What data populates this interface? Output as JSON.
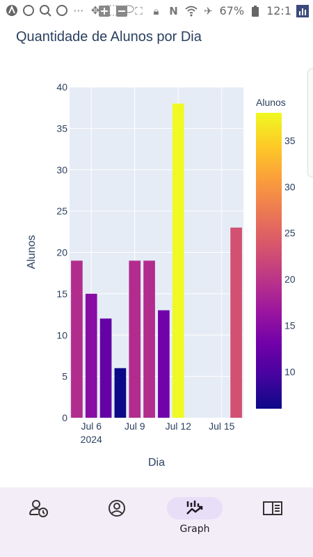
{
  "status_bar": {
    "battery": "67%",
    "time": "12:1",
    "icons": [
      "a-icon",
      "whatsapp-icon",
      "search-icon",
      "whatsapp-icon",
      "more-icon",
      "move-icon",
      "select-icon",
      "lasso-icon",
      "plus-icon",
      "minus-icon",
      "screenshot-icon",
      "lock-icon",
      "n-icon",
      "wifi-icon",
      "airplane-icon",
      "battery-icon",
      "chart-app-icon"
    ]
  },
  "page": {
    "title": "Quantidade de Alunos por Dia"
  },
  "chart_data": {
    "type": "bar",
    "x_dates": [
      "2024-07-05",
      "2024-07-06",
      "2024-07-07",
      "2024-07-08",
      "2024-07-09",
      "2024-07-10",
      "2024-07-11",
      "2024-07-12",
      "2024-07-16"
    ],
    "values": [
      19,
      15,
      12,
      6,
      19,
      19,
      13,
      38,
      23
    ],
    "xlabel": "Dia",
    "ylabel": "Alunos",
    "ylim": [
      0,
      40
    ],
    "y_ticks": [
      0,
      5,
      10,
      15,
      20,
      25,
      30,
      35,
      40
    ],
    "x_ticks": [
      {
        "date": "2024-07-06",
        "label": "Jul 6",
        "sublabel": "2024"
      },
      {
        "date": "2024-07-09",
        "label": "Jul 9",
        "sublabel": ""
      },
      {
        "date": "2024-07-12",
        "label": "Jul 12",
        "sublabel": ""
      },
      {
        "date": "2024-07-15",
        "label": "Jul 15",
        "sublabel": ""
      }
    ],
    "x_range": [
      "2024-07-04T12:00",
      "2024-07-16T12:00"
    ],
    "colorbar": {
      "title": "Alunos",
      "range": [
        6,
        38
      ],
      "ticks": [
        10,
        15,
        20,
        25,
        30,
        35
      ],
      "colorscale": [
        "#0d0887",
        "#46039f",
        "#7201a8",
        "#9c179e",
        "#bd3786",
        "#d8576b",
        "#ed7953",
        "#fb9f3a",
        "#fdca26",
        "#f0f921"
      ]
    },
    "plot_background": "#e5ecf6",
    "grid": true
  },
  "nav": {
    "items": [
      {
        "name": "nav-history",
        "icon": "person-clock-icon",
        "label": ""
      },
      {
        "name": "nav-profile",
        "icon": "account-circle-icon",
        "label": ""
      },
      {
        "name": "nav-graph",
        "icon": "trending-chart-icon",
        "label": "Graph",
        "active": true
      },
      {
        "name": "nav-reader",
        "icon": "book-open-icon",
        "label": ""
      }
    ],
    "active_color": "#e8def8"
  }
}
